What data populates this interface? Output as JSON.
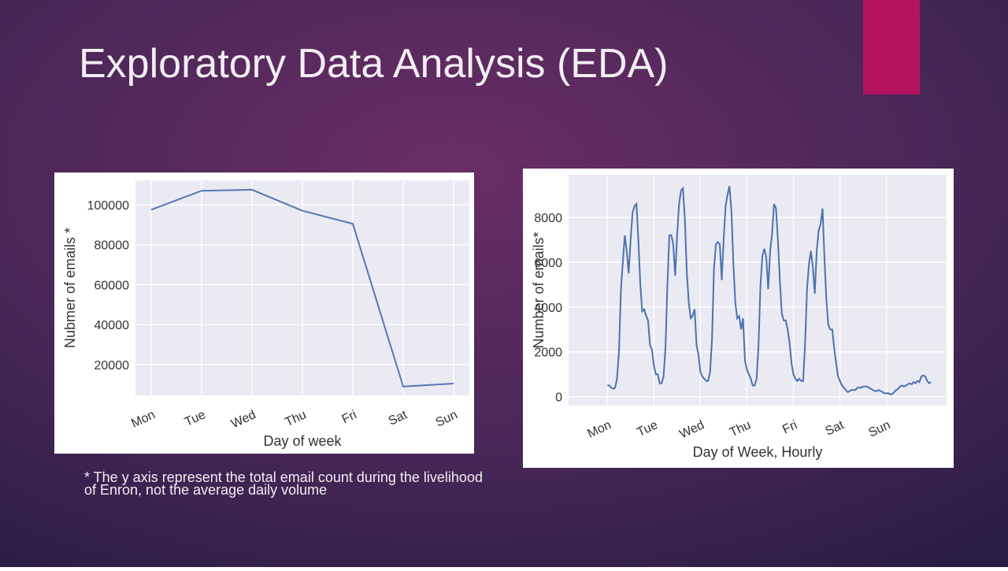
{
  "title": "Exploratory Data Analysis (EDA)",
  "footnote": [
    "* The y axis represent the total email count during the livelihood",
    "of Enron, not the average daily volume"
  ],
  "chart_data": [
    {
      "type": "line",
      "xlabel": "Day of week",
      "ylabel": "Nubmer of emails *",
      "color": "#5975b7",
      "grid": true,
      "categories": [
        "Mon",
        "Tue",
        "Wed",
        "Thu",
        "Fri",
        "Sat",
        "Sun"
      ],
      "values": [
        97500,
        107000,
        107500,
        97000,
        90500,
        9000,
        10500
      ],
      "ylim": [
        4600,
        112200
      ],
      "yticks": [
        20000,
        40000,
        60000,
        80000,
        100000
      ]
    },
    {
      "type": "line",
      "xlabel": "Day of Week, Hourly",
      "ylabel": "Number of emails*",
      "color": "#4c72b0",
      "grid": true,
      "x": [
        0,
        1,
        2,
        3,
        4,
        5,
        6,
        7,
        8,
        9,
        10,
        11,
        12,
        13,
        14,
        15,
        16,
        17,
        18,
        19,
        20,
        21,
        22,
        23,
        24,
        25,
        26,
        27,
        28,
        29,
        30,
        31,
        32,
        33,
        34,
        35,
        36,
        37,
        38,
        39,
        40,
        41,
        42,
        43,
        44,
        45,
        46,
        47,
        48,
        49,
        50,
        51,
        52,
        53,
        54,
        55,
        56,
        57,
        58,
        59,
        60,
        61,
        62,
        63,
        64,
        65,
        66,
        67,
        68,
        69,
        70,
        71,
        72,
        73,
        74,
        75,
        76,
        77,
        78,
        79,
        80,
        81,
        82,
        83,
        84,
        85,
        86,
        87,
        88,
        89,
        90,
        91,
        92,
        93,
        94,
        95,
        96,
        97,
        98,
        99,
        100,
        101,
        102,
        103,
        104,
        105,
        106,
        107,
        108,
        109,
        110,
        111,
        112,
        113,
        114,
        115,
        116,
        117,
        118,
        119,
        120,
        121,
        122,
        123,
        124,
        125,
        126,
        127,
        128,
        129,
        130,
        131,
        132,
        133,
        134,
        135,
        136,
        137,
        138,
        139,
        140,
        141,
        142,
        143,
        144,
        145,
        146,
        147,
        148,
        149,
        150,
        151,
        152,
        153,
        154,
        155,
        156,
        157,
        158,
        159,
        160,
        161,
        162,
        163,
        164,
        165,
        166,
        167
      ],
      "values": [
        500,
        500,
        400,
        350,
        400,
        800,
        2000,
        4800,
        6000,
        7200,
        6500,
        5500,
        7000,
        8200,
        8500,
        8600,
        7000,
        5000,
        3800,
        3900,
        3600,
        3400,
        2300,
        2100,
        1400,
        1000,
        1000,
        600,
        600,
        900,
        2200,
        5000,
        7200,
        7200,
        6800,
        5400,
        7200,
        8600,
        9200,
        9300,
        7900,
        5500,
        4200,
        3500,
        3600,
        3900,
        2300,
        1900,
        1100,
        900,
        800,
        700,
        700,
        1100,
        2600,
        5700,
        6800,
        6900,
        6800,
        5200,
        7000,
        8500,
        9000,
        9400,
        8300,
        6000,
        4200,
        3500,
        3600,
        3000,
        3500,
        1600,
        1200,
        1000,
        800,
        500,
        500,
        800,
        2300,
        5000,
        6300,
        6600,
        6200,
        4800,
        6500,
        7300,
        8600,
        8400,
        7000,
        5200,
        3700,
        3400,
        3400,
        3000,
        2400,
        1500,
        1000,
        800,
        700,
        800,
        700,
        700,
        2300,
        4800,
        5900,
        6500,
        5800,
        4600,
        6500,
        7400,
        7700,
        8400,
        6200,
        4300,
        3200,
        3000,
        3000,
        2200,
        1500,
        900,
        700,
        500,
        400,
        300,
        200,
        250,
        300,
        300,
        300,
        400,
        400,
        400,
        450,
        450,
        450,
        400,
        350,
        300,
        250,
        250,
        300,
        250,
        200,
        150,
        150,
        150,
        100,
        120,
        200,
        300,
        350,
        450,
        500,
        450,
        500,
        550,
        600,
        550,
        650,
        600,
        700,
        650,
        900,
        950,
        900,
        700,
        600,
        650
      ],
      "xlim": [
        -20,
        175
      ],
      "xticks": [
        {
          "value": 0,
          "label": "Mon"
        },
        {
          "value": 24,
          "label": "Tue"
        },
        {
          "value": 48,
          "label": "Wed"
        },
        {
          "value": 72,
          "label": "Thu"
        },
        {
          "value": 96,
          "label": "Fri"
        },
        {
          "value": 120,
          "label": "Sat"
        },
        {
          "value": 144,
          "label": "Sun"
        }
      ],
      "ylim": [
        -400,
        9900
      ],
      "yticks": [
        0,
        2000,
        4000,
        6000,
        8000
      ]
    }
  ]
}
